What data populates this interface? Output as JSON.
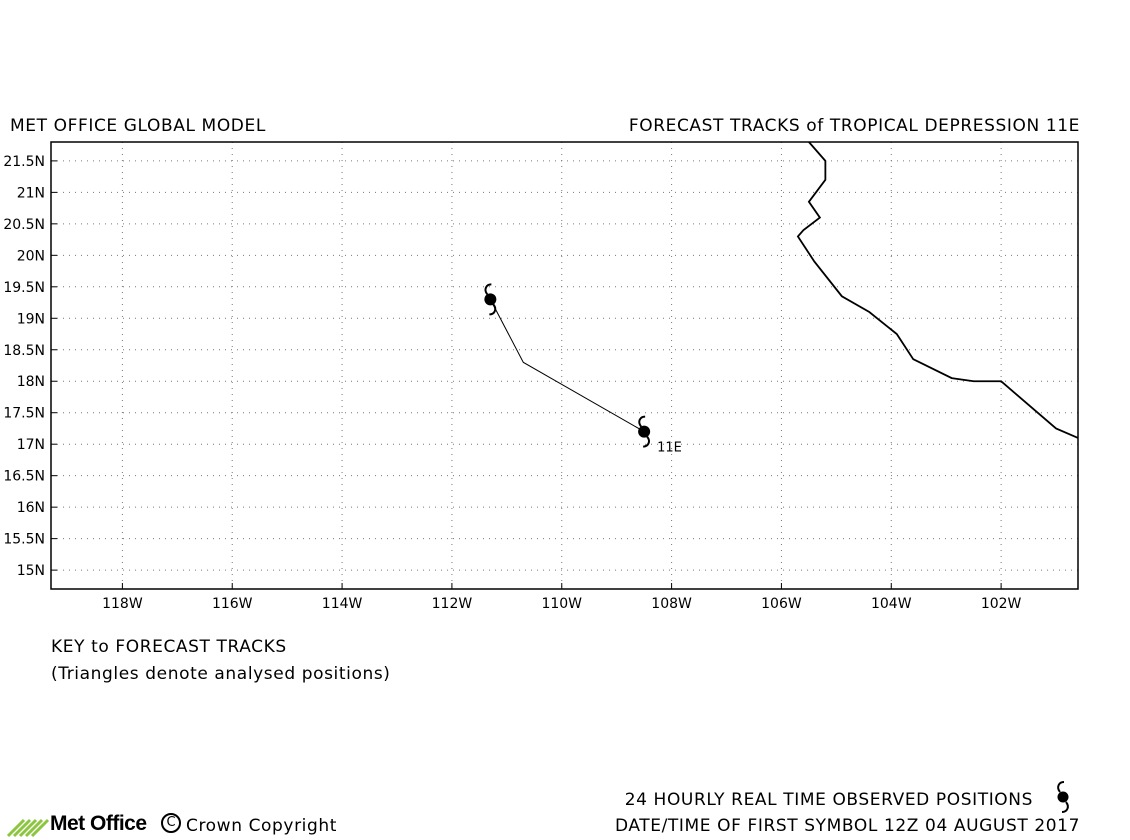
{
  "header": {
    "left_title": "MET OFFICE GLOBAL MODEL",
    "right_title": "FORECAST TRACKS of TROPICAL DEPRESSION 11E"
  },
  "map": {
    "lat_ticks": [
      {
        "value": 21.5,
        "label": "21.5N"
      },
      {
        "value": 21,
        "label": "21N"
      },
      {
        "value": 20.5,
        "label": "20.5N"
      },
      {
        "value": 20,
        "label": "20N"
      },
      {
        "value": 19.5,
        "label": "19.5N"
      },
      {
        "value": 19,
        "label": "19N"
      },
      {
        "value": 18.5,
        "label": "18.5N"
      },
      {
        "value": 18,
        "label": "18N"
      },
      {
        "value": 17.5,
        "label": "17.5N"
      },
      {
        "value": 17,
        "label": "17N"
      },
      {
        "value": 16.5,
        "label": "16.5N"
      },
      {
        "value": 16,
        "label": "16N"
      },
      {
        "value": 15.5,
        "label": "15.5N"
      },
      {
        "value": 15,
        "label": "15N"
      }
    ],
    "lon_ticks": [
      {
        "value": -118,
        "label": "118W"
      },
      {
        "value": -116,
        "label": "116W"
      },
      {
        "value": -114,
        "label": "114W"
      },
      {
        "value": -112,
        "label": "112W"
      },
      {
        "value": -110,
        "label": "110W"
      },
      {
        "value": -108,
        "label": "108W"
      },
      {
        "value": -106,
        "label": "106W"
      },
      {
        "value": -104,
        "label": "104W"
      },
      {
        "value": -102,
        "label": "102W"
      }
    ],
    "lon_range": [
      -119.3,
      -100.6
    ],
    "lat_range": [
      14.7,
      21.8
    ],
    "grid": "dotted",
    "coastline": [
      [
        -105.5,
        21.8
      ],
      [
        -105.2,
        21.5
      ],
      [
        -105.2,
        21.2
      ],
      [
        -105.5,
        20.85
      ],
      [
        -105.3,
        20.6
      ],
      [
        -105.6,
        20.4
      ],
      [
        -105.7,
        20.3
      ],
      [
        -105.4,
        19.9
      ],
      [
        -104.9,
        19.35
      ],
      [
        -104.4,
        19.1
      ],
      [
        -103.9,
        18.75
      ],
      [
        -103.6,
        18.35
      ],
      [
        -102.9,
        18.05
      ],
      [
        -102.5,
        18.0
      ],
      [
        -102.0,
        18.0
      ],
      [
        -101.0,
        17.25
      ],
      [
        -100.6,
        17.1
      ]
    ],
    "storm": {
      "name": "11E",
      "track": [
        [
          -111.3,
          19.3
        ],
        [
          -110.7,
          18.3
        ],
        [
          -108.5,
          17.2
        ]
      ],
      "symbols": [
        [
          -111.3,
          19.3
        ],
        [
          -108.5,
          17.2
        ]
      ]
    }
  },
  "key": {
    "title": "KEY to FORECAST TRACKS",
    "note": "(Triangles denote analysed positions)"
  },
  "footer": {
    "observed_label": "24 HOURLY REAL TIME OBSERVED POSITIONS",
    "datetime_label": "DATE/TIME OF FIRST SYMBOL 12Z 04 AUGUST 2017",
    "logo_text": "Met Office",
    "copyright_symbol": "C",
    "copyright_text": "Crown Copyright"
  }
}
